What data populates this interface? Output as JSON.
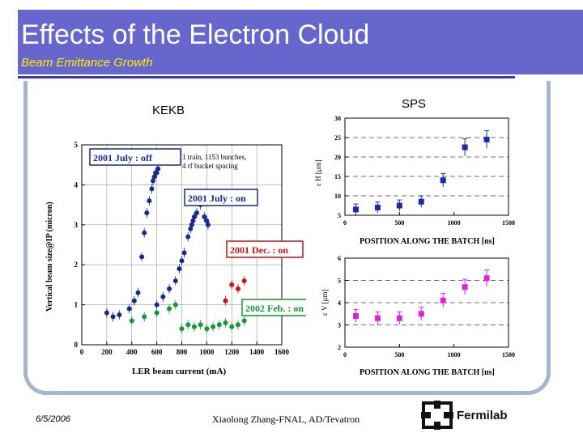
{
  "slide": {
    "title": "Effects of the Electron Cloud",
    "subtitle": "Beam Emittance Growth",
    "kekb_label": "KEKB",
    "sps_label": "SPS",
    "footer_date": "6/5/2006",
    "footer_center": "Xiaolong Zhang-FNAL, AD/Tevatron",
    "footer_logo_text": "Fermilab"
  },
  "colors": {
    "header_bg": "#6666cc",
    "subtitle": "#ffee00",
    "rule": "#3b3ba8",
    "frame": "#a8b4ce"
  },
  "chart_data": [
    {
      "type": "scatter",
      "xlabel": "LER beam current (mA)",
      "ylabel": "Vertical beam size@IP (micron)",
      "xlim": [
        0,
        1600
      ],
      "ylim": [
        0,
        5
      ],
      "xticks": [
        "0",
        "200",
        "400",
        "600",
        "800",
        "1000",
        "1200",
        "1400",
        "1600"
      ],
      "yticks": [
        "0",
        "1",
        "2",
        "3",
        "4",
        "5"
      ],
      "grid": true,
      "annotations": [
        "2001 July : off",
        "1 train, 1153 bunches,",
        "4 rf bucket spacing",
        "2001 July : on",
        "2001 Dec. : on",
        "2002 Feb. : on"
      ],
      "series": [
        {
          "color": "#1a2a8a",
          "x": [
            200,
            250,
            300,
            380,
            420,
            450,
            480,
            500,
            520,
            540,
            560,
            570,
            580,
            590,
            600,
            610
          ],
          "y": [
            0.8,
            0.7,
            0.75,
            0.9,
            1.1,
            1.3,
            2.2,
            2.8,
            3.3,
            3.6,
            3.9,
            4.1,
            4.2,
            4.3,
            4.3,
            4.4
          ]
        },
        {
          "color": "#1a2a8a",
          "x": [
            600,
            650,
            700,
            750,
            780,
            800,
            820,
            850,
            870,
            880,
            890,
            900,
            920,
            950,
            980,
            1000,
            1010
          ],
          "y": [
            1.0,
            1.2,
            1.4,
            1.6,
            1.9,
            2.1,
            2.3,
            2.7,
            2.9,
            3.0,
            3.1,
            3.2,
            3.3,
            3.5,
            3.2,
            3.1,
            3.0
          ]
        },
        {
          "color": "#cc1111",
          "x": [
            1150,
            1200,
            1250,
            1300
          ],
          "y": [
            1.1,
            1.5,
            1.4,
            1.6
          ]
        },
        {
          "color": "#119933",
          "x": [
            400,
            500,
            600,
            700,
            750,
            800,
            850,
            900,
            950,
            1000,
            1050,
            1100,
            1150,
            1200,
            1250,
            1300
          ],
          "y": [
            0.6,
            0.7,
            0.8,
            0.9,
            1.0,
            0.4,
            0.5,
            0.45,
            0.5,
            0.4,
            0.45,
            0.5,
            0.55,
            0.45,
            0.5,
            0.6
          ]
        }
      ]
    },
    {
      "type": "scatter",
      "xlabel": "POSITION ALONG THE BATCH [ns]",
      "ylabel": "ε H [μm]",
      "xlim": [
        0,
        1500
      ],
      "ylim": [
        5,
        30
      ],
      "xticks": [
        "0",
        "500",
        "1000",
        "1500"
      ],
      "yticks": [
        "5",
        "10",
        "15",
        "20",
        "25",
        "30"
      ],
      "series": [
        {
          "color": "#1a2aaa",
          "x": [
            100,
            300,
            500,
            700,
            900,
            1100,
            1300
          ],
          "y": [
            6.5,
            7.0,
            7.5,
            8.5,
            14.0,
            22.5,
            24.5
          ]
        }
      ]
    },
    {
      "type": "scatter",
      "xlabel": "POSITION ALONG THE BATCH [ns]",
      "ylabel": "ε V [μm]",
      "xlim": [
        0,
        1500
      ],
      "ylim": [
        2,
        6
      ],
      "xticks": [
        "0",
        "500",
        "1000",
        "1500"
      ],
      "yticks": [
        "2",
        "3",
        "4",
        "5",
        "6"
      ],
      "series": [
        {
          "color": "#dd22dd",
          "x": [
            100,
            300,
            500,
            700,
            900,
            1100,
            1300
          ],
          "y": [
            3.4,
            3.3,
            3.3,
            3.5,
            4.1,
            4.7,
            5.1
          ]
        }
      ]
    }
  ]
}
